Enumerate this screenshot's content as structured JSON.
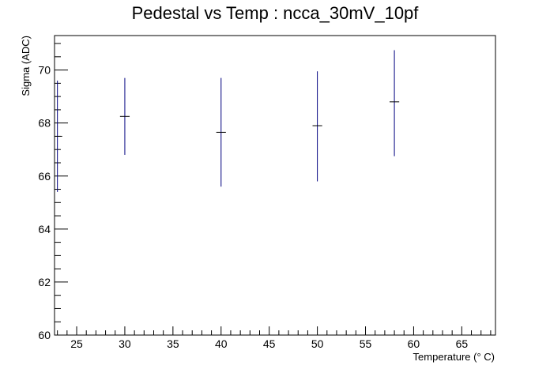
{
  "chart_data": {
    "type": "scatter",
    "title": "Pedestal vs Temp : ncca_30mV_10pf",
    "xlabel": "Temperature (° C)",
    "ylabel": "Sigma (ADC)",
    "xlim": [
      22.7,
      68.5
    ],
    "ylim": [
      60,
      71.3
    ],
    "x_ticks": [
      25,
      30,
      35,
      40,
      45,
      50,
      55,
      60,
      65
    ],
    "y_ticks": [
      60,
      62,
      64,
      66,
      68,
      70
    ],
    "grid": false,
    "legend": "none",
    "series": [
      {
        "color": "#000080",
        "points": [
          {
            "x": 23.0,
            "y": 67.5,
            "yerr_low": 65.4,
            "yerr_high": 69.6,
            "xerr": 0.5
          },
          {
            "x": 30.0,
            "y": 68.25,
            "yerr_low": 66.8,
            "yerr_high": 69.7,
            "xerr": 0.5
          },
          {
            "x": 40.0,
            "y": 67.65,
            "yerr_low": 65.6,
            "yerr_high": 69.7,
            "xerr": 0.5
          },
          {
            "x": 50.0,
            "y": 67.9,
            "yerr_low": 65.8,
            "yerr_high": 69.95,
            "xerr": 0.5
          },
          {
            "x": 58.0,
            "y": 68.8,
            "yerr_low": 66.75,
            "yerr_high": 70.75,
            "xerr": 0.5
          }
        ]
      }
    ]
  }
}
